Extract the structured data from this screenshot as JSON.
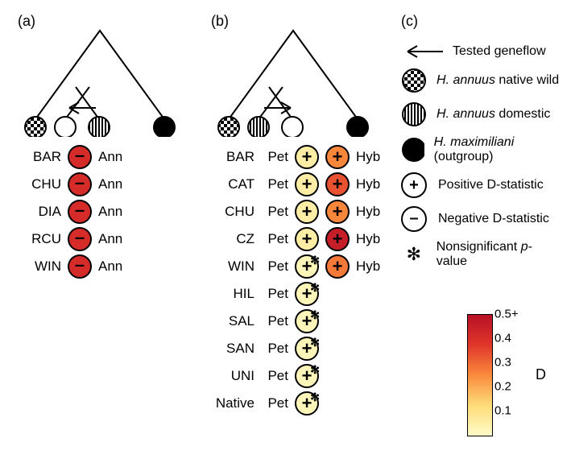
{
  "labels": {
    "a": "(a)",
    "b": "(b)",
    "c": "(c)"
  },
  "panel_a": {
    "rows": [
      {
        "code": "BAR",
        "ann": "Ann",
        "sign": "−",
        "d": 0.42,
        "ns": false
      },
      {
        "code": "CHU",
        "ann": "Ann",
        "sign": "−",
        "d": 0.42,
        "ns": false
      },
      {
        "code": "DIA",
        "ann": "Ann",
        "sign": "−",
        "d": 0.42,
        "ns": false
      },
      {
        "code": "RCU",
        "ann": "Ann",
        "sign": "−",
        "d": 0.42,
        "ns": false
      },
      {
        "code": "WIN",
        "ann": "Ann",
        "sign": "−",
        "d": 0.42,
        "ns": false
      }
    ],
    "tree_order": [
      "checker",
      "white",
      "stripe",
      "black"
    ],
    "arrow_dir": "left"
  },
  "panel_b": {
    "rows": [
      {
        "code": "BAR",
        "pet": "Pet",
        "hyb": "Hyb",
        "petD": 0.1,
        "petNS": false,
        "hybD": 0.28,
        "hybNS": false,
        "hasHyb": true
      },
      {
        "code": "CAT",
        "pet": "Pet",
        "hyb": "Hyb",
        "petD": 0.1,
        "petNS": false,
        "hybD": 0.35,
        "hybNS": false,
        "hasHyb": true
      },
      {
        "code": "CHU",
        "pet": "Pet",
        "hyb": "Hyb",
        "petD": 0.1,
        "petNS": false,
        "hybD": 0.28,
        "hybNS": false,
        "hasHyb": true
      },
      {
        "code": "CZ",
        "pet": "Pet",
        "hyb": "Hyb",
        "petD": 0.1,
        "petNS": false,
        "hybD": 0.46,
        "hybNS": false,
        "hasHyb": true
      },
      {
        "code": "WIN",
        "pet": "Pet",
        "hyb": "Hyb",
        "petD": 0.07,
        "petNS": true,
        "hybD": 0.3,
        "hybNS": false,
        "hasHyb": true
      },
      {
        "code": "HIL",
        "pet": "Pet",
        "petD": 0.07,
        "petNS": true,
        "hasHyb": false
      },
      {
        "code": "SAL",
        "pet": "Pet",
        "petD": 0.07,
        "petNS": true,
        "hasHyb": false
      },
      {
        "code": "SAN",
        "pet": "Pet",
        "petD": 0.07,
        "petNS": true,
        "hasHyb": false
      },
      {
        "code": "UNI",
        "pet": "Pet",
        "petD": 0.07,
        "petNS": true,
        "hasHyb": false
      },
      {
        "code": "Native",
        "pet": "Pet",
        "petD": 0.07,
        "petNS": true,
        "hasHyb": false
      }
    ],
    "tree_order": [
      "checker",
      "stripe",
      "white",
      "black"
    ],
    "arrow_dir": "right"
  },
  "legend": {
    "arrow": "Tested geneflow",
    "checker": {
      "text": "H. annuus",
      "suffix": " native wild"
    },
    "stripe": {
      "text": "H. annuus",
      "suffix": " domestic"
    },
    "black": {
      "text": "H. maximiliani",
      "suffix": " (outgroup)"
    },
    "plus": "Positive D-statistic",
    "minus": "Negative D-statistic",
    "star": "Nonsignificant ",
    "star_p": "p",
    "star_suffix": "-value"
  },
  "colorscale": {
    "label": "D",
    "ticks": [
      {
        "v": "0.5+",
        "p": 0
      },
      {
        "v": "0.4",
        "p": 0.2
      },
      {
        "v": "0.3",
        "p": 0.4
      },
      {
        "v": "0.2",
        "p": 0.6
      },
      {
        "v": "0.1",
        "p": 0.8
      }
    ],
    "gradient": [
      "#fefbc7",
      "#fedc7a",
      "#fa8b3c",
      "#e1362a",
      "#b71127"
    ],
    "domain": [
      0.05,
      0.5
    ]
  },
  "patterns": {
    "checker": "checker",
    "stripe": "stripe",
    "black": "#000000",
    "white": "#ffffff"
  }
}
